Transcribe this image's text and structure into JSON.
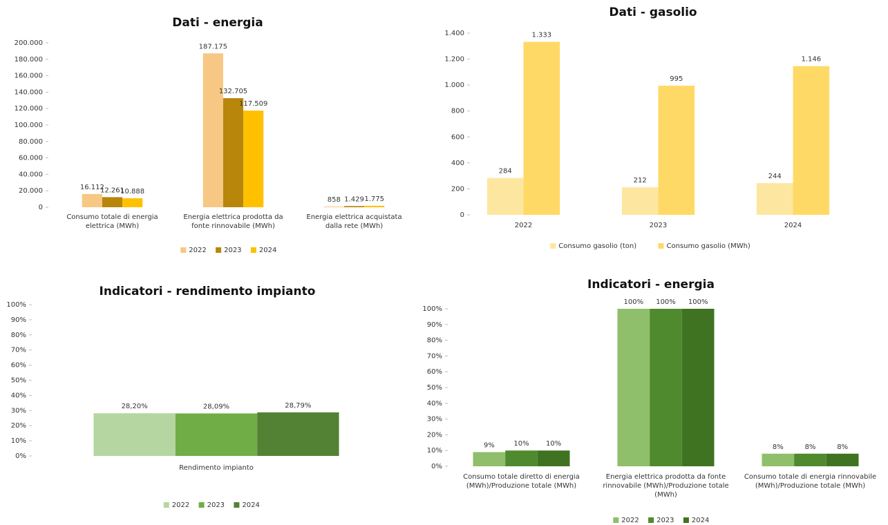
{
  "chart_data": [
    {
      "type": "bar",
      "title": "Dati - energia",
      "categories": [
        "Consumo totale di energia elettrica (MWh)",
        "Energia elettrica prodotta da fonte rinnovabile (MWh)",
        "Energia elettrica acquistata dalla rete (MWh)"
      ],
      "series": [
        {
          "name": "2022",
          "color": "#f7c884",
          "values": [
            16112,
            187175,
            858
          ],
          "value_labels": [
            "16.112",
            "187.175",
            "858"
          ]
        },
        {
          "name": "2023",
          "color": "#b8860b",
          "values": [
            12261,
            132705,
            1429
          ],
          "value_labels": [
            "12.261",
            "132.705",
            "1.429"
          ]
        },
        {
          "name": "2024",
          "color": "#ffc000",
          "values": [
            10888,
            117509,
            1775
          ],
          "value_labels": [
            "10.888",
            "117.509",
            "1.775"
          ]
        }
      ],
      "ylim": [
        0,
        200000
      ],
      "yticks": [
        0,
        {
          "value": 20000,
          "label": "20.000"
        },
        {
          "value": 40000,
          "label": "40.000"
        },
        {
          "value": 60000,
          "label": "60.000"
        },
        {
          "value": 80000,
          "label": "80.000"
        },
        {
          "value": 100000,
          "label": "100.000"
        },
        {
          "value": 120000,
          "label": "120.000"
        },
        {
          "value": 140000,
          "label": "140.000"
        },
        {
          "value": 160000,
          "label": "160.000"
        },
        {
          "value": 180000,
          "label": "180.000"
        },
        {
          "value": 200000,
          "label": "200.000"
        }
      ],
      "legend": "bottom"
    },
    {
      "type": "bar",
      "title": "Dati - gasolio",
      "categories": [
        "2022",
        "2023",
        "2024"
      ],
      "series": [
        {
          "name": "Consumo gasolio (ton)",
          "color": "#fde7a0",
          "values": [
            284,
            212,
            244
          ],
          "value_labels": [
            "284",
            "212",
            "244"
          ]
        },
        {
          "name": "Consumo gasolio (MWh)",
          "color": "#ffd966",
          "values": [
            1333,
            995,
            1146
          ],
          "value_labels": [
            "1.333",
            "995",
            "1.146"
          ]
        }
      ],
      "ylim": [
        0,
        1400
      ],
      "yticks": [
        0,
        200,
        400,
        600,
        800,
        {
          "value": 1000,
          "label": "1.000"
        },
        {
          "value": 1200,
          "label": "1.200"
        },
        {
          "value": 1400,
          "label": "1.400"
        }
      ],
      "legend": "bottom"
    },
    {
      "type": "bar",
      "title": "Indicatori - rendimento impianto",
      "categories": [
        "Rendimento impianto"
      ],
      "series": [
        {
          "name": "2022",
          "color": "#b5d6a0",
          "values": [
            28.2
          ],
          "value_labels": [
            "28,20%"
          ]
        },
        {
          "name": "2023",
          "color": "#70ad47",
          "values": [
            28.09
          ],
          "value_labels": [
            "28,09%"
          ]
        },
        {
          "name": "2024",
          "color": "#548235",
          "values": [
            28.79
          ],
          "value_labels": [
            "28,79%"
          ]
        }
      ],
      "ylim": [
        0,
        100
      ],
      "yticks": [
        {
          "value": 0,
          "label": "0%"
        },
        {
          "value": 10,
          "label": "10%"
        },
        {
          "value": 20,
          "label": "20%"
        },
        {
          "value": 30,
          "label": "30%"
        },
        {
          "value": 40,
          "label": "40%"
        },
        {
          "value": 50,
          "label": "50%"
        },
        {
          "value": 60,
          "label": "60%"
        },
        {
          "value": 70,
          "label": "70%"
        },
        {
          "value": 80,
          "label": "80%"
        },
        {
          "value": 90,
          "label": "90%"
        },
        {
          "value": 100,
          "label": "100%"
        }
      ],
      "legend": "bottom"
    },
    {
      "type": "bar",
      "title": "Indicatori - energia",
      "categories": [
        "Consumo totale diretto di energia (MWh)/Produzione totale (MWh)",
        "Energia elettrica prodotta da fonte rinnovabile (MWh)/Produzione totale (MWh)",
        "Consumo totale di energia rinnovabile (MWh)/Produzione totale (MWh)"
      ],
      "series": [
        {
          "name": "2022",
          "color": "#8fbf6a",
          "values": [
            9,
            100,
            8
          ],
          "value_labels": [
            "9%",
            "100%",
            "8%"
          ]
        },
        {
          "name": "2023",
          "color": "#4f8a2e",
          "values": [
            10,
            100,
            8
          ],
          "value_labels": [
            "10%",
            "100%",
            "8%"
          ]
        },
        {
          "name": "2024",
          "color": "#3f7322",
          "values": [
            10,
            100,
            8
          ],
          "value_labels": [
            "10%",
            "100%",
            "8%"
          ]
        }
      ],
      "ylim": [
        0,
        100
      ],
      "yticks": [
        {
          "value": 0,
          "label": "0%"
        },
        {
          "value": 10,
          "label": "10%"
        },
        {
          "value": 20,
          "label": "20%"
        },
        {
          "value": 30,
          "label": "30%"
        },
        {
          "value": 40,
          "label": "40%"
        },
        {
          "value": 50,
          "label": "50%"
        },
        {
          "value": 60,
          "label": "60%"
        },
        {
          "value": 70,
          "label": "70%"
        },
        {
          "value": 80,
          "label": "80%"
        },
        {
          "value": 90,
          "label": "90%"
        },
        {
          "value": 100,
          "label": "100%"
        }
      ],
      "legend": "bottom"
    }
  ]
}
